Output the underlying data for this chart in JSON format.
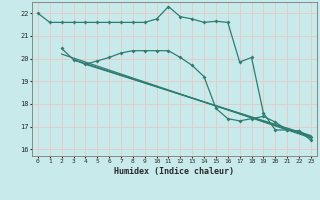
{
  "xlabel": "Humidex (Indice chaleur)",
  "bg_color": "#c8eaea",
  "grid_color": "#e8c8c8",
  "line_color": "#2e7d72",
  "xlim": [
    -0.5,
    23.5
  ],
  "ylim": [
    15.7,
    22.5
  ],
  "yticks": [
    16,
    17,
    18,
    19,
    20,
    21,
    22
  ],
  "xticks": [
    0,
    1,
    2,
    3,
    4,
    5,
    6,
    7,
    8,
    9,
    10,
    11,
    12,
    13,
    14,
    15,
    16,
    17,
    18,
    19,
    20,
    21,
    22,
    23
  ],
  "curve1_x": [
    0,
    1,
    2,
    3,
    4,
    5,
    6,
    7,
    8,
    9,
    10,
    11,
    12,
    13,
    14,
    15,
    16,
    17,
    18,
    19,
    20,
    21,
    22,
    23
  ],
  "curve1_y": [
    22.0,
    21.6,
    21.6,
    21.6,
    21.6,
    21.6,
    21.6,
    21.6,
    21.6,
    21.6,
    21.75,
    22.3,
    21.85,
    21.75,
    21.6,
    21.65,
    21.6,
    19.85,
    20.05,
    17.6,
    16.85,
    16.85,
    16.8,
    16.4
  ],
  "curve2_x": [
    2,
    3,
    4,
    5,
    6,
    7,
    8,
    9,
    10,
    11,
    12,
    13,
    14,
    15,
    16,
    17,
    18,
    19,
    20,
    21,
    22,
    23
  ],
  "curve2_y": [
    20.45,
    19.95,
    19.75,
    19.9,
    20.05,
    20.25,
    20.35,
    20.35,
    20.35,
    20.35,
    20.05,
    19.7,
    19.2,
    17.8,
    17.35,
    17.25,
    17.35,
    17.45,
    17.2,
    16.85,
    16.8,
    16.55
  ],
  "line1_x": [
    2,
    23
  ],
  "line1_y": [
    20.2,
    16.5
  ],
  "line2_x": [
    3,
    23
  ],
  "line2_y": [
    19.95,
    16.55
  ],
  "line3_x": [
    4,
    23
  ],
  "line3_y": [
    19.75,
    16.6
  ]
}
